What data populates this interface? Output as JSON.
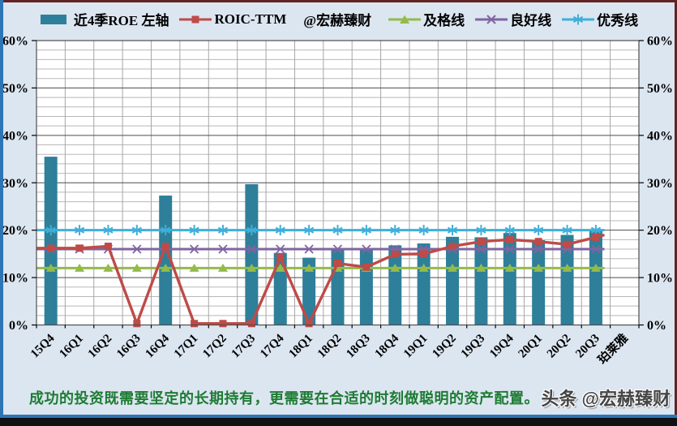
{
  "colors": {
    "background": "#DCE6F1",
    "plot_bg": "#FFFFFF",
    "bar": "#2E7F99",
    "roic": "#BE4B48",
    "pass": "#94BB4A",
    "good": "#8064A2",
    "excellent": "#3FAFD8",
    "grid_major": "#4D4D4D",
    "grid_minor": "#B8B8B8",
    "grid_vertical": "#A6A6A6",
    "axis_tick": "#000000",
    "border_top": "#622423",
    "border_left": "#2E75B6",
    "bottom_strip": "#111111",
    "footer_text": "#1E7B33",
    "watermark": "#454545"
  },
  "legend": {
    "items": [
      {
        "label": "近4季ROE 左轴",
        "marker": "bar"
      },
      {
        "label": "ROIC-TTM",
        "marker": "square"
      },
      {
        "label": "@宏赫臻财",
        "marker": "none"
      },
      {
        "label": "及格线",
        "marker": "triangle"
      },
      {
        "label": "良好线",
        "marker": "x"
      },
      {
        "label": "优秀线",
        "marker": "asterisk"
      }
    ]
  },
  "chart_data": {
    "type": "bar+line",
    "title": "",
    "xlabel": "",
    "ylabel": "",
    "categories": [
      "15Q4",
      "16Q1",
      "16Q2",
      "16Q3",
      "16Q4",
      "17Q1",
      "17Q2",
      "17Q3",
      "17Q4",
      "18Q1",
      "18Q2",
      "18Q3",
      "18Q4",
      "19Q1",
      "19Q2",
      "19Q3",
      "19Q4",
      "20Q1",
      "20Q2",
      "20Q3",
      "珀莱雅"
    ],
    "series": [
      {
        "name": "近4季ROE 左轴",
        "type": "bar",
        "axis": "left",
        "values": [
          35.5,
          null,
          null,
          null,
          27.3,
          null,
          null,
          29.7,
          15.2,
          14.2,
          15.9,
          16.2,
          16.8,
          17.2,
          18.6,
          18.5,
          19.4,
          17.9,
          19.0,
          19.9
        ]
      },
      {
        "name": "ROIC-TTM",
        "type": "line",
        "marker": "square",
        "values": [
          16.2,
          16.2,
          16.6,
          0.3,
          16.6,
          0.3,
          0.3,
          0.3,
          14.2,
          0.3,
          13.0,
          12.2,
          14.9,
          15.0,
          16.6,
          17.6,
          18.0,
          17.6,
          17.0,
          18.5
        ],
        "tail_value": 19.0
      },
      {
        "name": "及格线",
        "type": "line",
        "marker": "triangle",
        "values_constant": 12
      },
      {
        "name": "良好线",
        "type": "line",
        "marker": "x",
        "values_constant": 16
      },
      {
        "name": "优秀线",
        "type": "line",
        "marker": "asterisk",
        "values_constant": 20
      }
    ],
    "ylim": [
      0,
      60
    ],
    "y_major_step": 10,
    "y_minor_step": 2,
    "y_tick_labels": [
      "0%",
      "10%",
      "20%",
      "30%",
      "40%",
      "50%",
      "60%"
    ],
    "grid": true,
    "legend_position": "top",
    "dual_axis": true
  },
  "footer": {
    "quote": "成功的投资既需要坚定的长期持有，更需要在合适的时刻做聪明的资产配置。",
    "watermark": "头条 @宏赫臻财"
  }
}
